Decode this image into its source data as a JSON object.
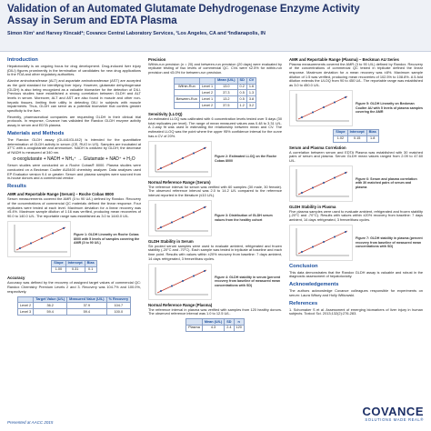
{
  "header": {
    "title": "Validation of an Automated Glutamate Dehydrogenase Enzyme Activity Assay in Serum and EDTA Plasma",
    "authors": "Simon Kim¹ and Harvey Kincaid²; Covance Central Laboratory Services, ¹Los Angeles, CA and ²Indianapolis, IN"
  },
  "columns": [
    [
      {
        "heading": "Introduction"
      },
      {
        "text": "Hepatotoxicity is an ongoing focus for drug development. Drug-induced liver injury (DILI) figures prominently in the termination of candidates for new drug applications to the FDA and other regulatory authorities."
      },
      {
        "text": "Alanine aminotransferase (ALT) and aspartate aminotransferase (AST) are accepted as the gold standard for identifying liver injury. However, glutamate dehydrogenase (GLDH) is also being recognized as a valuable biomarker for the detection of DILI. Previous studies have established a strong correlation between GLDH and ALT levels in serum. Moreover, ALT and AST are also found in muscle and other non-hepatic tissues, limiting their utility in detecting DILI in subjects with muscle impairments. Thus, GLDH can serve as a potential biomarker that confers greater specificity to the liver."
      },
      {
        "text": "Recently, pharmaceutical companies are requesting GLDH in their clinical trial protocols. In response, Covance has validated the Randox GLDH enzyme activity assay in serum and EDTA plasma."
      },
      {
        "heading": "Materials and Methods"
      },
      {
        "text": "The Randox GLDH assay (GL441/GL442) is intended for the quantitative determination of GLDH activity in serum (CE, RUO in US). Samples are incubated at 37°C with α-oxoglutarate and ammonium. NADH is oxidized by GLDH; the decrease of NADH is measured at 340 nm."
      },
      {
        "equation": "α-oxoglutarate + NADH + NH₄⁺ → Glutamate + NAD⁺ + H₂O"
      },
      {
        "text": "Serum studies were conducted on a Roche Cobas® 8000. Plasma studies were conducted on a Beckman Coulter AU5400 chemistry analyzer. Data analyses used EP Evaluator version 9.4 or greater. Serum and plasma samples were sourced from in-house donors and a commercial vendor."
      },
      {
        "heading": "Results"
      },
      {
        "subheading": "AMR and Reportable Range (Serum) – Roche Cobas 8000"
      },
      {
        "text": "Serum measurements covered the AMR (3 to 90 U/L) defined by Randox. Recovery of the concentrations of commercial QC materials defined the linear response. Four replicates were tested at each level. Maximum deviation for a linear recovery was ±5.4%. Maximum sample dilution of 1:16 was verified, producing mean recoveries of 90.0 to 140.0 U/L. The reportable range was established as 3.0 to 1440.0 U/L."
      },
      {
        "figure": "Figure 1: GLDH Linearity on Roche Cobas 8000 with 5 levels of samples covering the AMR (3 to 90 U/L)"
      },
      {
        "table": [
          [
            "Slope",
            "Intercept",
            "Bias"
          ],
          [
            "1.00",
            "0.31",
            "0.1"
          ]
        ]
      },
      {
        "subheading": "Accuracy"
      },
      {
        "text": "Accuracy was defined by the recovery of assigned target values of commercial QC: Randox Chemistry Premium Levels 2 and 3. Recovery was 104.7% and 100.0%, respectively."
      },
      {
        "table": [
          [
            "",
            "Target Value (U/L)",
            "Measured Value (U/L)",
            "% Recovery"
          ],
          [
            "Level 2",
            "36.2",
            "37.9",
            "104.7"
          ],
          [
            "Level 3",
            "59.4",
            "59.4",
            "100.0"
          ]
        ]
      }
    ],
    [
      {
        "subheading": "Precision"
      },
      {
        "text": "Within-run precision (n = 20) and between-run precision (20 days) were evaluated by replicate testing of two levels of commercial QC. CVs were ≤2.5% for within-run precision and ≤5.0% for between-run precision."
      },
      {
        "table": [
          [
            "",
            "",
            "Mean (U/L)",
            "SD",
            "CV"
          ],
          [
            "Within-Run",
            "Level 1",
            "13.0",
            "0.2",
            "1.6"
          ],
          [
            "",
            "Level 2",
            "37.3",
            "0.5",
            "1.3"
          ],
          [
            "Between-Run",
            "Level 1",
            "13.2",
            "0.5",
            "3.8"
          ],
          [
            "",
            "Level 2",
            "37.5",
            "1.2",
            "3.2"
          ]
        ]
      },
      {
        "subheading": "Sensitivity (LLOQ)"
      },
      {
        "text": "An estimated LLOQ was calibrated with 6 concentration levels tested over 5 days (30 total replicates per level). The range of mean measured values was 0.48 to 3.31 U/L. A 2-way fit was used in estimating the relationship between mean and CV. The estimated LLOQ was the point where the upper 95% confidence interval for the curve has a CV of 20%."
      },
      {
        "figure": "Figure 2: Estimated LLOQ on the Roche Cobas 8000"
      },
      {
        "subheading": "Normal Reference Range (Serum)"
      },
      {
        "text": "The reference interval for serum was verified with 60 samples (30 male, 30 female). The observed reference interval was 2.0 to 14.2 U/L compared to the reference interval reported in the literature (≤10 U/L)."
      },
      {
        "figure": "Figure 3: Distribution of GLDH serum values from the healthy cohort"
      },
      {
        "subheading": "GLDH Stability in Serum"
      },
      {
        "text": "Six pooled serum samples were used to evaluate ambient, refrigerated and frozen stability (-20°C and -70°C). Each sample was tested in triplicate at baseline and each time point. Results with values within ±20% recovery from baseline: 7 days ambient, 14 days refrigerated, 3 freeze/thaw cycles."
      },
      {
        "figure": "Figure 4: GLDH stability in serum (percent recovery from baseline of measured mean concentrations with SD)"
      },
      {
        "subheading": "Normal Reference Range (Plasma)"
      },
      {
        "text": "The reference interval in plasma was verified with samples from 120 healthy donors. The observed reference interval was 1.0 to 12.5 U/L."
      },
      {
        "table": [
          [
            "",
            "Mean (U/L)",
            "SD",
            "n"
          ],
          [
            "Plasma",
            "4.3",
            "2.4",
            "120"
          ]
        ]
      }
    ],
    [
      {
        "subheading": "AMR and Reportable Range (Plasma) – Beckman AU Series"
      },
      {
        "text": "Plasma measurements covered the AMR (3 to 90 U/L) defined by Randox. Recovery of the concentrations of commercial QC tested in triplicate defined the linear response. Maximum deviation for a mean recovery was ±8%. Maximum sample dilution of 1:5 was verified, producing mean recoveries of 102.5% to 108.8%. A 5-fold dilution extends the ULOQ from 90 to 450 U/L. The reportable range was established as 3.0 to 450.0 U/L."
      },
      {
        "figure": "Figure 5: GLDH Linearity on Beckman Coulter AU with 5 levels of plasma samples covering the AMR"
      },
      {
        "table": [
          [
            "Slope",
            "Intercept",
            "Bias"
          ],
          [
            "1.02",
            "0.15",
            "1.8"
          ]
        ]
      },
      {
        "subheading": "Serum and Plasma Correlation"
      },
      {
        "text": "A correlation between serum and EDTA Plasma was established with 30 matched pairs of serum and plasma. Serum GLDH mean values ranged from 2.09 to 47.60 U/L."
      },
      {
        "figure": "Figure 6: Serum and plasma correlation with 30 matched pairs of serum and plasma"
      },
      {
        "subheading": "GLDH Stability in Plasma"
      },
      {
        "text": "Five plasma samples were used to evaluate ambient, refrigerated and frozen stability (-20°C and -70°C). Results with values within ±20% recovery from baseline: 7 days ambient, 14 days refrigerated, 3 freeze/thaw cycles."
      },
      {
        "figure": "Figure 7: GLDH stability in plasma (percent recovery from baseline of measured mean concentrations with SD)"
      },
      {
        "heading": "Conclusion"
      },
      {
        "text": "This data demonstrates that the Randox GLDH assay is valuable and robust in the diagnostic assessment of hepatotoxicity."
      },
      {
        "heading": "Acknowledgements"
      },
      {
        "text": "The authors acknowledge Covance colleagues responsible for experiments on serum: Laura Wilsey and Holly Witkowski."
      },
      {
        "heading": "References"
      },
      {
        "text": "1. Schomaker S et al. Assessment of emerging biomarkers of liver injury in human subjects. Toxicol Sci. 2013;132(2):276-283."
      }
    ]
  ],
  "footer": {
    "presented": "Presented at AACC 2015",
    "logo": "COVANCE",
    "tagline": "SOLUTIONS MADE REAL®"
  }
}
